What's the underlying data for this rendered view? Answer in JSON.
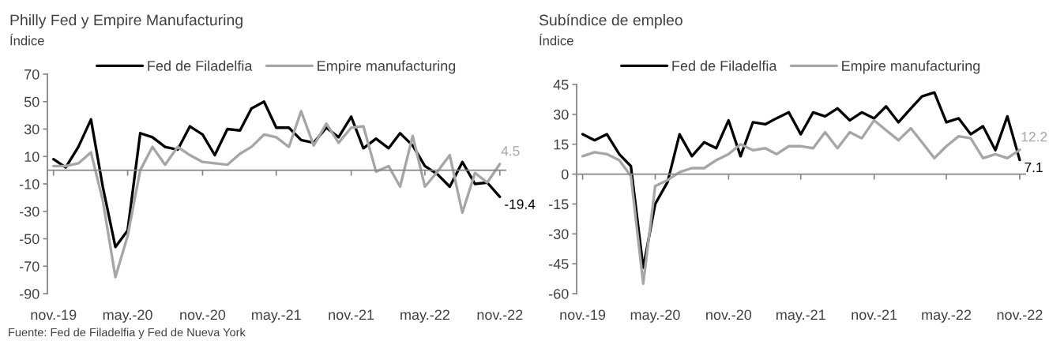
{
  "chart_data": [
    {
      "type": "line",
      "title": "Philly Fed y Empire Manufacturing",
      "subtitle": "Índice",
      "x": [
        "2019-11",
        "2019-12",
        "2020-01",
        "2020-02",
        "2020-03",
        "2020-04",
        "2020-05",
        "2020-06",
        "2020-07",
        "2020-08",
        "2020-09",
        "2020-10",
        "2020-11",
        "2020-12",
        "2021-01",
        "2021-02",
        "2021-03",
        "2021-04",
        "2021-05",
        "2021-06",
        "2021-07",
        "2021-08",
        "2021-09",
        "2021-10",
        "2021-11",
        "2021-12",
        "2022-01",
        "2022-02",
        "2022-03",
        "2022-04",
        "2022-05",
        "2022-06",
        "2022-07",
        "2022-08",
        "2022-09",
        "2022-10",
        "2022-11"
      ],
      "xlim": [
        "2019-10-17",
        "2022-11-15"
      ],
      "xticks": [
        {
          "value": "2019-11",
          "label": "nov.-19"
        },
        {
          "value": "2020-05",
          "label": "may.-20"
        },
        {
          "value": "2020-11",
          "label": "nov.-20"
        },
        {
          "value": "2021-05",
          "label": "may.-21"
        },
        {
          "value": "2021-11",
          "label": "nov.-21"
        },
        {
          "value": "2022-05",
          "label": "may.-22"
        },
        {
          "value": "2022-11",
          "label": "nov.-22"
        }
      ],
      "ylim": [
        -90,
        70
      ],
      "yticks": [
        -90,
        -70,
        -50,
        -30,
        -10,
        10,
        30,
        50,
        70
      ],
      "legend": "top",
      "series": [
        {
          "name": "Fed de Filadelfia",
          "color": "#000000",
          "values": [
            8,
            2,
            17,
            37,
            -12,
            -56,
            -44,
            27,
            24,
            17,
            15,
            32,
            26,
            11,
            30,
            29,
            45,
            50,
            31,
            31,
            22,
            20,
            31,
            24,
            39,
            16,
            23,
            16,
            27,
            18,
            3,
            -3,
            -12,
            6,
            -10,
            -9,
            -19.4
          ],
          "value_labels": [
            null,
            null,
            null,
            null,
            null,
            null,
            null,
            null,
            null,
            null,
            null,
            null,
            null,
            null,
            null,
            null,
            null,
            null,
            null,
            null,
            null,
            null,
            null,
            null,
            null,
            null,
            null,
            null,
            null,
            null,
            null,
            null,
            null,
            null,
            null,
            null,
            "-19.4"
          ]
        },
        {
          "name": "Empire manufacturing",
          "color": "#a6a6a6",
          "values": [
            3,
            3,
            5,
            13,
            -22,
            -78,
            -48,
            0,
            17,
            4,
            17,
            11,
            6,
            5,
            4,
            12,
            17,
            26,
            24,
            17,
            43,
            18,
            34,
            20,
            31,
            32,
            -1,
            3,
            -12,
            25,
            -12,
            -1,
            11,
            -31,
            -2,
            -9,
            4.5
          ],
          "value_labels": [
            null,
            null,
            null,
            null,
            null,
            null,
            null,
            null,
            null,
            null,
            null,
            null,
            null,
            null,
            null,
            null,
            null,
            null,
            null,
            null,
            null,
            null,
            null,
            null,
            null,
            null,
            null,
            null,
            null,
            null,
            null,
            null,
            null,
            null,
            null,
            null,
            "4.5"
          ]
        }
      ],
      "annotations": [
        "Fuente: Fed de Filadelfia y Fed de Nueva York"
      ]
    },
    {
      "type": "line",
      "title": "Subíndice de empleo",
      "subtitle": "Índice",
      "x": [
        "2019-11",
        "2019-12",
        "2020-01",
        "2020-02",
        "2020-03",
        "2020-04",
        "2020-05",
        "2020-06",
        "2020-07",
        "2020-08",
        "2020-09",
        "2020-10",
        "2020-11",
        "2020-12",
        "2021-01",
        "2021-02",
        "2021-03",
        "2021-04",
        "2021-05",
        "2021-06",
        "2021-07",
        "2021-08",
        "2021-09",
        "2021-10",
        "2021-11",
        "2021-12",
        "2022-01",
        "2022-02",
        "2022-03",
        "2022-04",
        "2022-05",
        "2022-06",
        "2022-07",
        "2022-08",
        "2022-09",
        "2022-10",
        "2022-11"
      ],
      "xlim": [
        "2019-10-17",
        "2022-11-15"
      ],
      "xticks": [
        {
          "value": "2019-11",
          "label": "nov.-19"
        },
        {
          "value": "2020-05",
          "label": "may.-20"
        },
        {
          "value": "2020-11",
          "label": "nov.-20"
        },
        {
          "value": "2021-05",
          "label": "may.-21"
        },
        {
          "value": "2021-11",
          "label": "nov.-21"
        },
        {
          "value": "2022-05",
          "label": "may.-22"
        },
        {
          "value": "2022-11",
          "label": "nov.-22"
        }
      ],
      "ylim": [
        -60,
        45
      ],
      "yticks": [
        -60,
        -45,
        -30,
        -15,
        0,
        15,
        30,
        45
      ],
      "legend": "top",
      "series": [
        {
          "name": "Fed de Filadelfia",
          "color": "#000000",
          "values": [
            20,
            17,
            20,
            10,
            4,
            -47,
            -15,
            -4,
            20,
            9,
            16,
            13,
            27,
            9,
            26,
            25,
            28,
            31,
            20,
            31,
            29,
            33,
            27,
            31,
            28,
            34,
            26,
            33,
            39,
            41,
            26,
            28,
            20,
            24,
            12,
            29,
            7.1
          ],
          "value_labels": [
            null,
            null,
            null,
            null,
            null,
            null,
            null,
            null,
            null,
            null,
            null,
            null,
            null,
            null,
            null,
            null,
            null,
            null,
            null,
            null,
            null,
            null,
            null,
            null,
            null,
            null,
            null,
            null,
            null,
            null,
            null,
            null,
            null,
            null,
            null,
            null,
            "7.1"
          ]
        },
        {
          "name": "Empire manufacturing",
          "color": "#a6a6a6",
          "values": [
            9,
            11,
            10,
            7,
            -1,
            -55,
            -6,
            -3,
            1,
            3,
            3,
            7,
            10,
            15,
            12,
            13,
            10,
            14,
            14,
            13,
            21,
            13,
            21,
            18,
            27,
            22,
            17,
            23,
            16,
            8,
            14,
            19,
            18,
            8,
            10,
            8,
            12.2
          ],
          "value_labels": [
            null,
            null,
            null,
            null,
            null,
            null,
            null,
            null,
            null,
            null,
            null,
            null,
            null,
            null,
            null,
            null,
            null,
            null,
            null,
            null,
            null,
            null,
            null,
            null,
            null,
            null,
            null,
            null,
            null,
            null,
            null,
            null,
            null,
            null,
            null,
            null,
            "12.2"
          ]
        }
      ]
    }
  ]
}
